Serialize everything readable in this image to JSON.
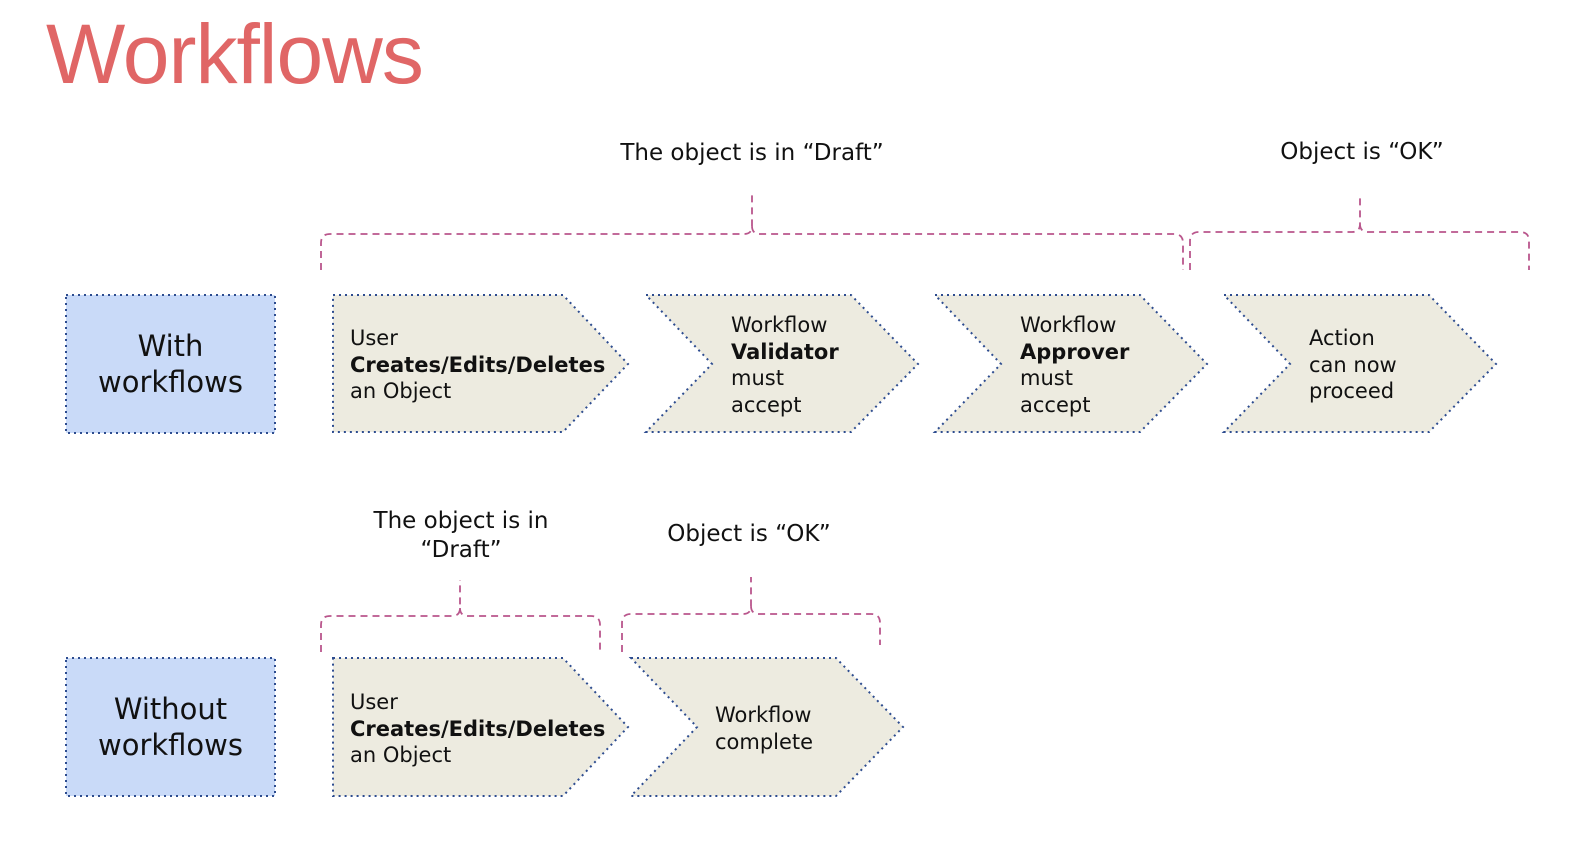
{
  "title": "Workflows",
  "colors": {
    "title": "#e06666",
    "row_label_fill": "#c9daf8",
    "row_label_border": "#2d4c8f",
    "step_fill": "#edebe0",
    "step_border": "#2d4c8f",
    "brace": "#b9568c"
  },
  "with_workflows": {
    "label_line1": "With",
    "label_line2": "workflows",
    "brace_draft_label": "The object is in “Draft”",
    "brace_ok_label": "Object is “OK”",
    "steps": [
      {
        "line1": "User",
        "line2": "Creates/Edits/Deletes",
        "line3": "an Object"
      },
      {
        "line1": "Workflow",
        "line2": "Validator",
        "line3": "must",
        "line4": "accept"
      },
      {
        "line1": "Workflow",
        "line2": "Approver",
        "line3": "must",
        "line4": "accept"
      },
      {
        "line1": "Action",
        "line2": "can now",
        "line3": "proceed"
      }
    ]
  },
  "without_workflows": {
    "label_line1": "Without",
    "label_line2": "workflows",
    "brace_draft_label_line1": "The object is in",
    "brace_draft_label_line2": "“Draft”",
    "brace_ok_label": "Object is “OK”",
    "steps": [
      {
        "line1": "User",
        "line2": "Creates/Edits/Deletes",
        "line3": "an Object"
      },
      {
        "line1": "Workflow",
        "line2": "complete"
      }
    ]
  }
}
